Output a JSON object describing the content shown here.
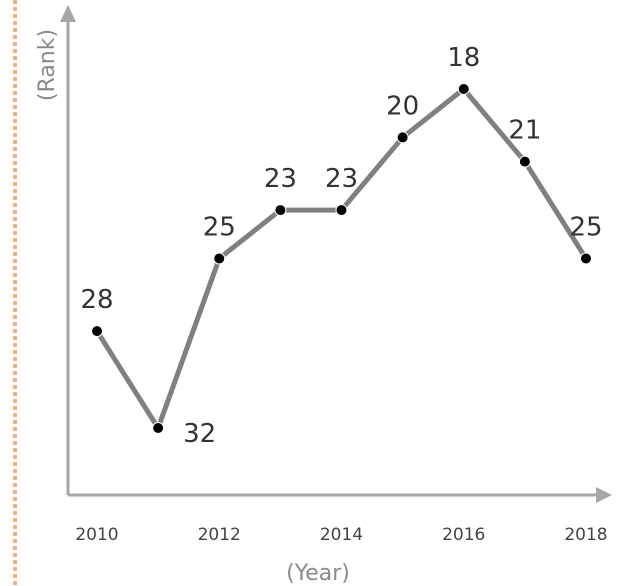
{
  "chart_data": {
    "type": "line",
    "title": "",
    "xlabel": "(Year)",
    "ylabel": "(Rank)",
    "y_reversed": true,
    "grid": false,
    "x": [
      2010,
      2011,
      2012,
      2013,
      2014,
      2015,
      2016,
      2017,
      2018
    ],
    "x_ticks": [
      "2010",
      "2012",
      "2014",
      "2016",
      "2018"
    ],
    "series": [
      {
        "values": [
          28,
          32,
          25,
          23,
          23,
          20,
          18,
          21,
          25
        ]
      }
    ],
    "colors": {
      "line": "#808080",
      "marker": "#000000",
      "axis": "#a6a6a6",
      "border": "#f4b183"
    }
  }
}
